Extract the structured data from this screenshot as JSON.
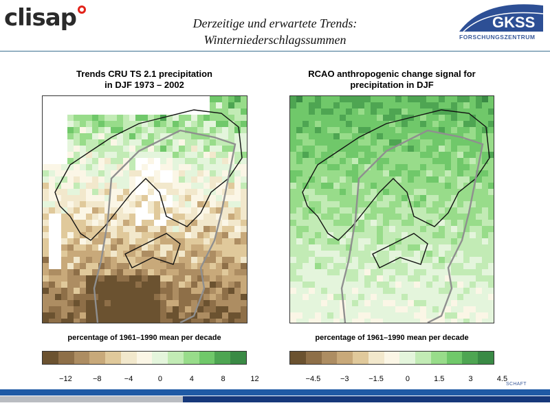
{
  "header": {
    "title_line1": "Derzeitige und erwartete Trends:",
    "title_line2": "Winterniederschlagssummen",
    "logo_left": "clisap",
    "logo_right": "GKSS",
    "logo_right_sub": "FORSCHUNGSZENTRUM"
  },
  "panels": [
    {
      "title_line1": "Trends CRU TS 2.1 precipitation",
      "title_line2": "in DJF 1973 – 2002",
      "colorbar_label": "percentage of 1961–1990 mean per decade",
      "tick_labels": [
        "−12",
        "−8",
        "−4",
        "0",
        "4",
        "8",
        "12"
      ],
      "colors": [
        "#6b5230",
        "#8e6f48",
        "#ad8d62",
        "#c8a97a",
        "#e0c99b",
        "#f2e8cc",
        "#fbf6e6",
        "#e4f5dc",
        "#c2ebb5",
        "#98dc8a",
        "#70c86a",
        "#4ea552",
        "#3a8a45"
      ]
    },
    {
      "title_line1": "RCAO anthropogenic change signal for",
      "title_line2": "precipitation in DJF",
      "colorbar_label": "percentage of 1961–1990 mean per decade",
      "tick_labels": [
        "−4.5",
        "−3",
        "−1.5",
        "0",
        "1.5",
        "3",
        "4.5"
      ],
      "colors": [
        "#6b5230",
        "#8e6f48",
        "#ad8d62",
        "#c8a97a",
        "#e0c99b",
        "#f2e8cc",
        "#fbf6e6",
        "#e4f5dc",
        "#c2ebb5",
        "#98dc8a",
        "#70c86a",
        "#4ea552",
        "#3a8a45"
      ]
    }
  ],
  "footer": {
    "text": "SCHAFT"
  }
}
